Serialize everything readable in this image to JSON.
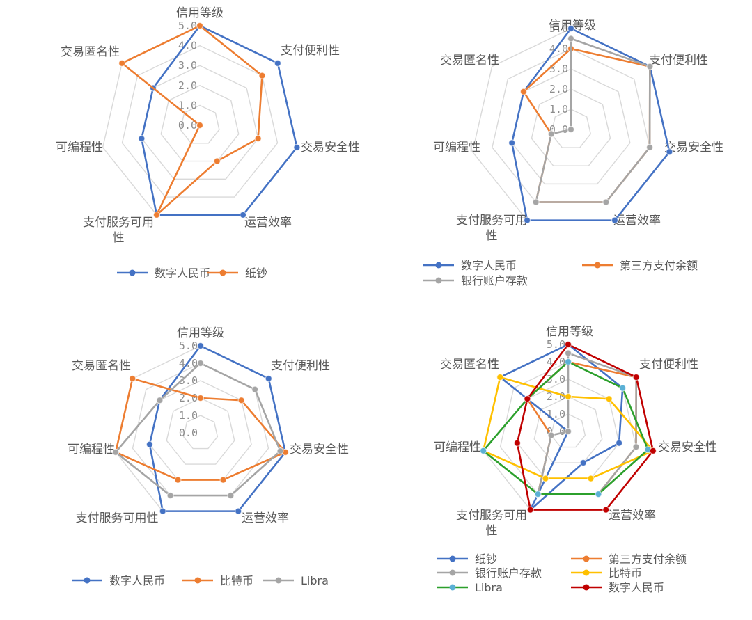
{
  "chart_data": [
    {
      "type": "radar",
      "axes": [
        "信用等级",
        "支付便利性",
        "交易安全性",
        "运营效率",
        "支付服务可用性",
        "可编程性",
        "交易匿名性"
      ],
      "ticks": [
        "0.0",
        "1.0",
        "2.0",
        "3.0",
        "4.0",
        "5.0"
      ],
      "range": [
        0,
        5
      ],
      "grid": true,
      "legend_position": "bottom",
      "series": [
        {
          "name": "数字人民币",
          "color": "#4472c4",
          "values": [
            5,
            5,
            5,
            5,
            5,
            3,
            3
          ]
        },
        {
          "name": "纸钞",
          "color": "#ed7d31",
          "values": [
            5,
            4,
            3,
            2,
            5,
            0,
            5
          ]
        }
      ]
    },
    {
      "type": "radar",
      "axes": [
        "信用等级",
        "支付便利性",
        "交易安全性",
        "运营效率",
        "支付服务可用性",
        "可编程性",
        "交易匿名性"
      ],
      "ticks": [
        "0.0",
        "1.0",
        "2.0",
        "3.0",
        "4.0",
        "5.0"
      ],
      "range": [
        0,
        5
      ],
      "grid": true,
      "legend_position": "bottom",
      "series": [
        {
          "name": "数字人民币",
          "color": "#4472c4",
          "values": [
            5,
            5,
            5,
            5,
            5,
            3,
            3
          ]
        },
        {
          "name": "第三方支付余额",
          "color": "#ed7d31",
          "values": [
            4,
            5,
            4,
            4,
            4,
            1,
            3
          ]
        },
        {
          "name": "银行账户存款",
          "color": "#a5a5a5",
          "values": [
            4.5,
            5,
            4,
            4,
            4,
            1,
            0
          ]
        }
      ]
    },
    {
      "type": "radar",
      "axes": [
        "信用等级",
        "支付便利性",
        "交易安全性",
        "运营效率",
        "支付服务可用性",
        "可编程性",
        "交易匿名性"
      ],
      "ticks": [
        "0.0",
        "1.0",
        "2.0",
        "3.0",
        "4.0",
        "5.0"
      ],
      "range": [
        0,
        5
      ],
      "grid": true,
      "legend_position": "bottom",
      "series": [
        {
          "name": "数字人民币",
          "color": "#4472c4",
          "values": [
            5,
            5,
            5,
            5,
            5,
            3,
            3
          ]
        },
        {
          "name": "比特币",
          "color": "#ed7d31",
          "values": [
            2,
            3,
            5,
            3,
            3,
            5,
            5
          ]
        },
        {
          "name": "Libra",
          "color": "#a5a5a5",
          "values": [
            4,
            4,
            4.7,
            4,
            4,
            5,
            3
          ]
        }
      ]
    },
    {
      "type": "radar",
      "axes": [
        "信用等级",
        "支付便利性",
        "交易安全性",
        "运营效率",
        "支付服务可用性",
        "可编程性",
        "交易匿名性"
      ],
      "ticks": [
        "0.0",
        "1.0",
        "2.0",
        "3.0",
        "4.0",
        "5.0"
      ],
      "range": [
        0,
        5
      ],
      "grid": true,
      "legend_position": "bottom",
      "series": [
        {
          "name": "纸钞",
          "color": "#4472c4",
          "values": [
            5,
            4,
            3,
            2,
            5,
            0,
            5
          ]
        },
        {
          "name": "第三方支付余额",
          "color": "#ed7d31",
          "values": [
            4,
            5,
            4,
            4,
            4,
            1,
            3
          ]
        },
        {
          "name": "银行账户存款",
          "color": "#a5a5a5",
          "values": [
            4.5,
            5,
            4,
            4,
            4,
            1,
            0
          ]
        },
        {
          "name": "比特币",
          "color": "#ffc000",
          "values": [
            2,
            3,
            5,
            3,
            3,
            5,
            5
          ]
        },
        {
          "name": "Libra",
          "color": "#2ca02c",
          "values": [
            4,
            4,
            4.7,
            4,
            4,
            5,
            3
          ]
        },
        {
          "name": "数字人民币",
          "color": "#c00000",
          "values": [
            5,
            5,
            5,
            5,
            5,
            3,
            3
          ]
        }
      ],
      "marker_overrides": {
        "Libra": "#5bb0d5"
      }
    }
  ]
}
